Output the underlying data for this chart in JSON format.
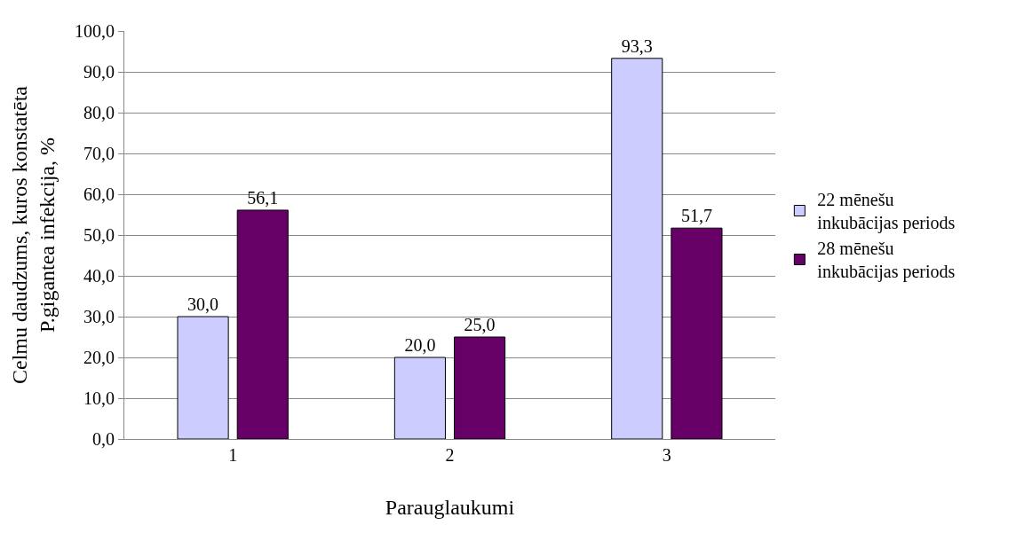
{
  "chart_data": {
    "type": "bar",
    "xlabel": "Parauglaukumi",
    "ylabel": "Celmu daudzums, kuros konstatēta\nP.gigantea infekcija, %",
    "categories": [
      "1",
      "2",
      "3"
    ],
    "series": [
      {
        "name": "22 mēnešu\ninkubācijas periods",
        "color": "#ccccff",
        "values": [
          30.0,
          20.0,
          93.3
        ],
        "value_labels": [
          "30,0",
          "20,0",
          "93,3"
        ]
      },
      {
        "name": "28 mēnešu\ninkubācijas periods",
        "color": "#660066",
        "values": [
          56.1,
          25.0,
          51.7
        ],
        "value_labels": [
          "56,1",
          "25,0",
          "51,7"
        ]
      }
    ],
    "ylim": [
      0,
      100
    ],
    "yticks": [
      {
        "value": 0,
        "label": "0,0"
      },
      {
        "value": 10,
        "label": "10,0"
      },
      {
        "value": 20,
        "label": "20,0"
      },
      {
        "value": 30,
        "label": "30,0"
      },
      {
        "value": 40,
        "label": "40,0"
      },
      {
        "value": 50,
        "label": "50,0"
      },
      {
        "value": 60,
        "label": "60,0"
      },
      {
        "value": 70,
        "label": "70,0"
      },
      {
        "value": 80,
        "label": "80,0"
      },
      {
        "value": 90,
        "label": "90,0"
      },
      {
        "value": 100,
        "label": "100,0"
      }
    ],
    "grid": "y",
    "legend": "right"
  }
}
